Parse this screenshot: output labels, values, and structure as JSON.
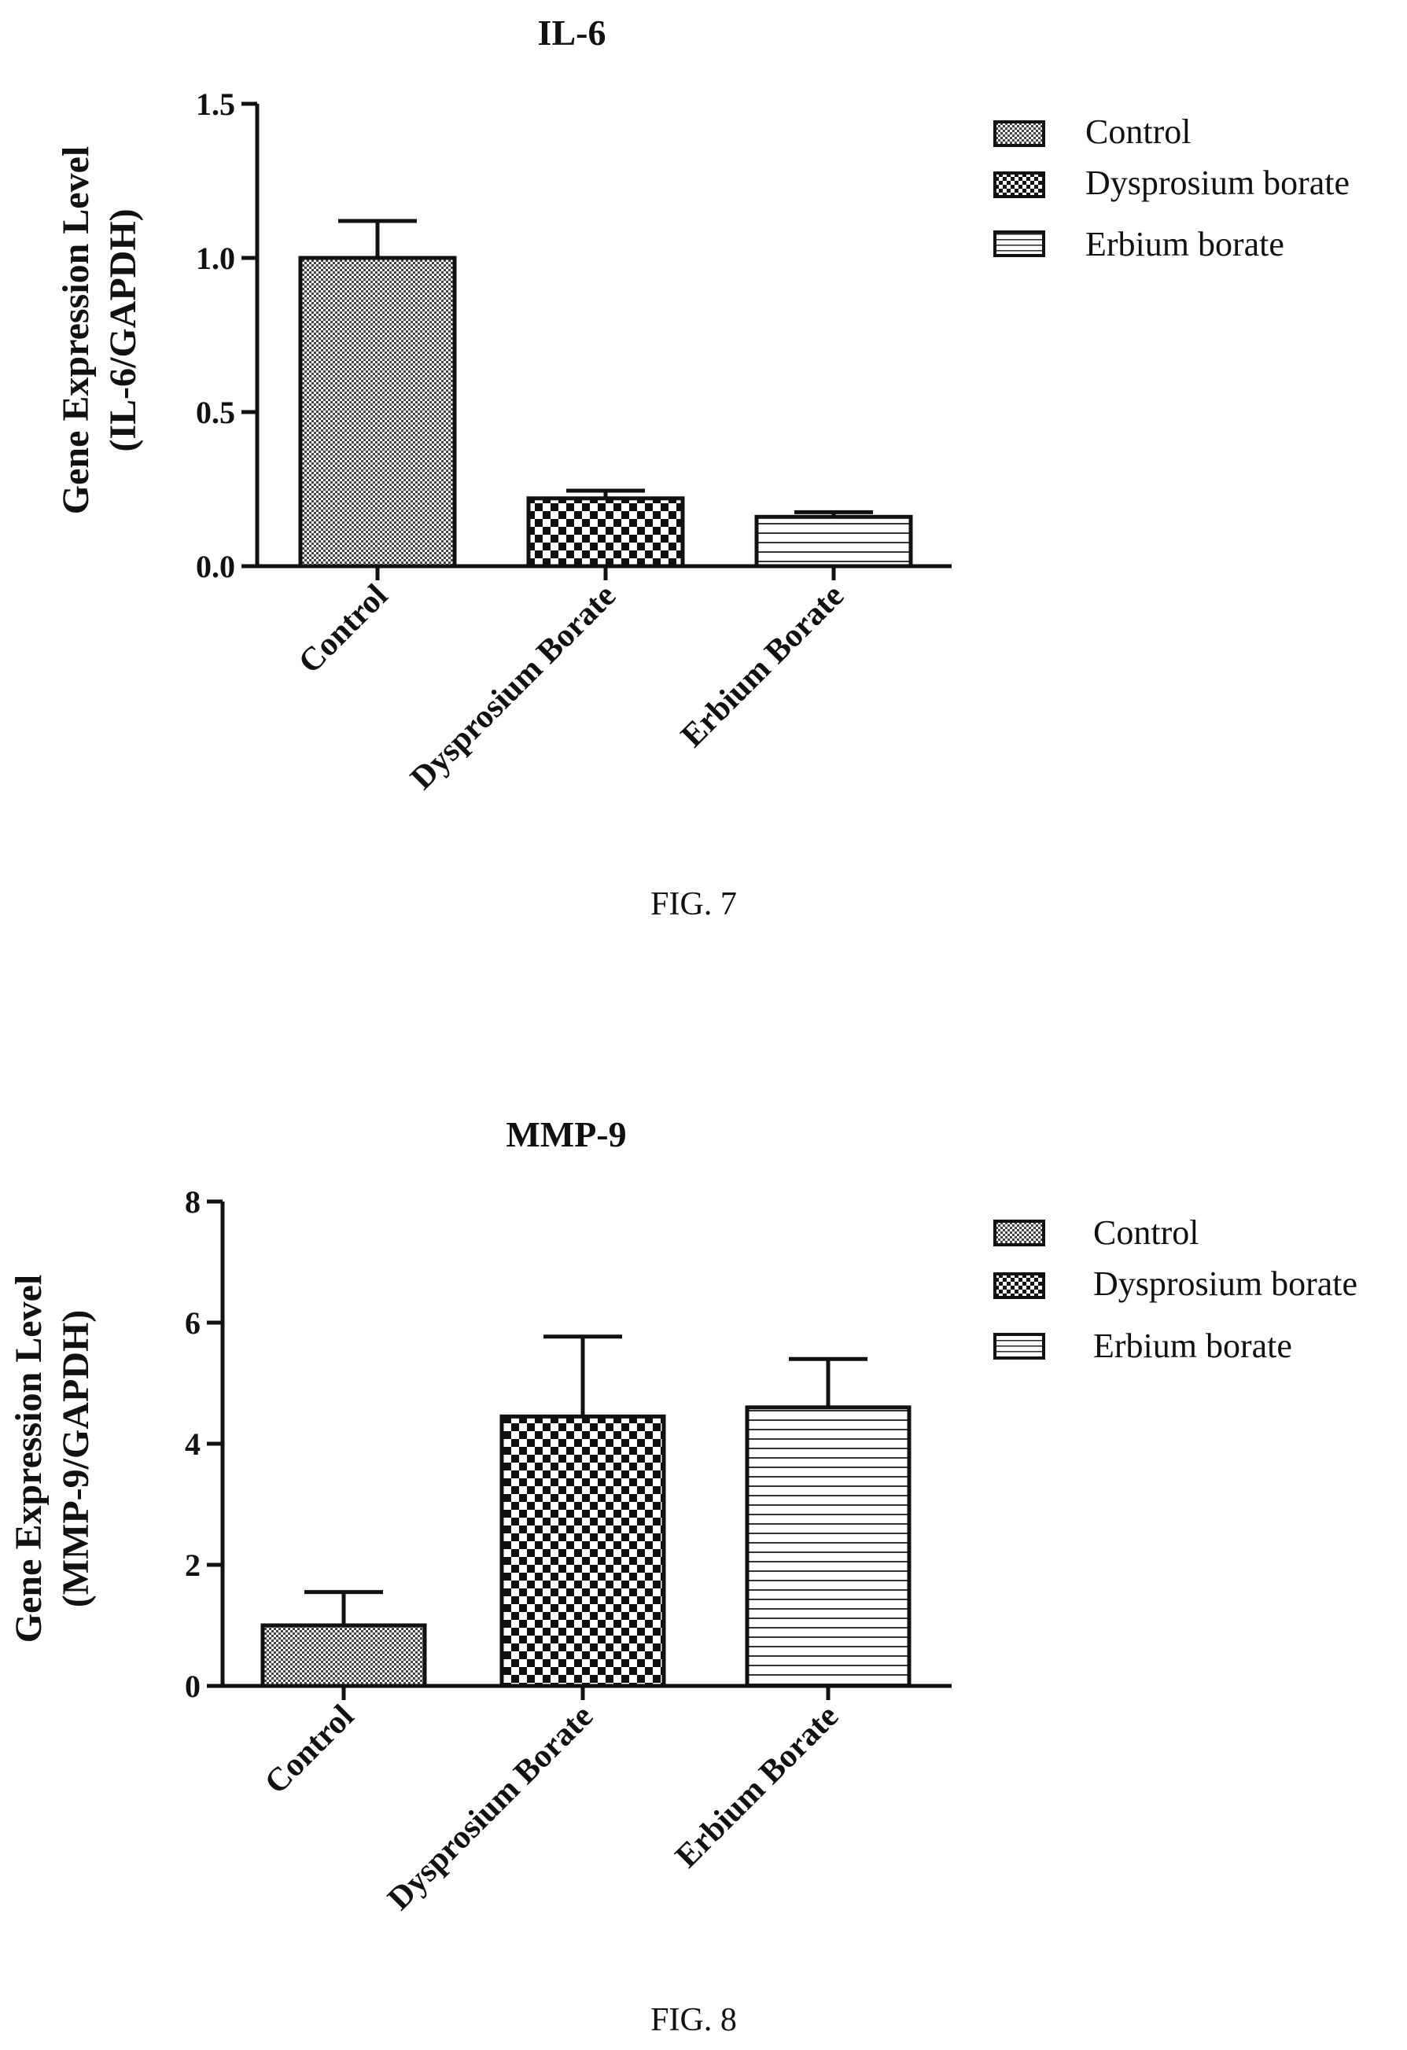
{
  "chart_data": [
    {
      "type": "bar",
      "title": "IL-6",
      "ylabel_line1": "Gene Expression Level",
      "ylabel_line2": "(IL-6/GAPDH)",
      "xlabel": "",
      "categories": [
        "Control",
        "Dysprosium Borate",
        "Erbium Borate"
      ],
      "values": [
        1.0,
        0.22,
        0.16
      ],
      "errors": [
        0.12,
        0.025,
        0.015
      ],
      "patterns": [
        "dots",
        "checker",
        "hlines"
      ],
      "ylim": [
        0,
        1.5
      ],
      "yticks": [
        0.0,
        0.5,
        1.0,
        1.5
      ],
      "ytick_labels": [
        "0.0",
        "0.5",
        "1.0",
        "1.5"
      ],
      "grid": false,
      "legend": {
        "placement": "right",
        "entries": [
          {
            "label": "Control",
            "pattern": "dots"
          },
          {
            "label": "Dysprosium borate",
            "pattern": "checker"
          },
          {
            "label": "Erbium borate",
            "pattern": "hlines"
          }
        ]
      },
      "caption": "FIG. 7"
    },
    {
      "type": "bar",
      "title": "MMP-9",
      "ylabel_line1": "Gene Expression Level",
      "ylabel_line2": "(MMP-9/GAPDH)",
      "xlabel": "",
      "categories": [
        "Control",
        "Dysprosium Borate",
        "Erbium Borate"
      ],
      "values": [
        1.0,
        4.45,
        4.6
      ],
      "errors": [
        0.55,
        1.32,
        0.8
      ],
      "patterns": [
        "dots",
        "checker",
        "hlines"
      ],
      "ylim": [
        0,
        8
      ],
      "yticks": [
        0,
        2,
        4,
        6,
        8
      ],
      "ytick_labels": [
        "0",
        "2",
        "4",
        "6",
        "8"
      ],
      "grid": false,
      "legend": {
        "placement": "right",
        "entries": [
          {
            "label": "Control",
            "pattern": "dots"
          },
          {
            "label": "Dysprosium borate",
            "pattern": "checker"
          },
          {
            "label": "Erbium borate",
            "pattern": "hlines"
          }
        ]
      },
      "caption": "FIG. 8"
    }
  ]
}
